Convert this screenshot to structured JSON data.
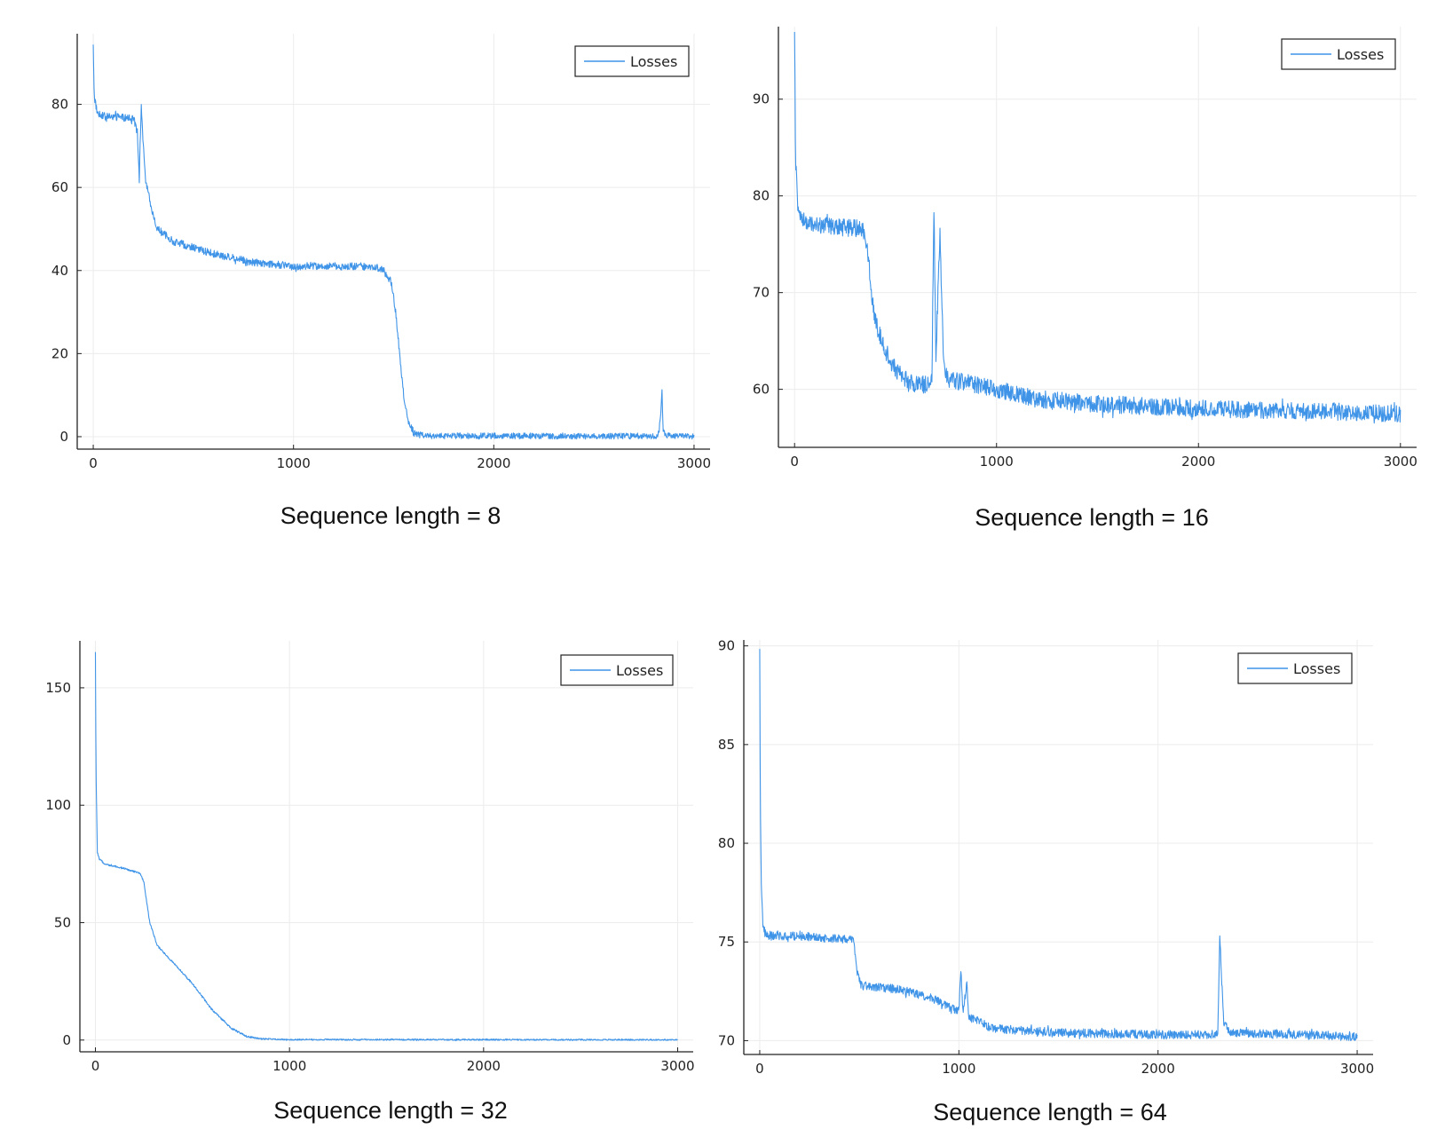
{
  "colors": {
    "series": "#3f94e8",
    "axis": "#222222",
    "grid": "#ececec"
  },
  "chart_data": [
    {
      "type": "line",
      "caption": "Sequence length = 8",
      "xlim": [
        -80,
        3080
      ],
      "ylim": [
        -3,
        97
      ],
      "xticks": [
        0,
        1000,
        2000,
        3000
      ],
      "yticks": [
        0,
        20,
        40,
        60,
        80
      ],
      "grid": true,
      "legend_position": "top-right",
      "series": [
        {
          "name": "Losses",
          "noise": 0.9,
          "points": [
            [
              0,
              94
            ],
            [
              5,
              82
            ],
            [
              20,
              78
            ],
            [
              60,
              77
            ],
            [
              120,
              77
            ],
            [
              200,
              76.5
            ],
            [
              220,
              74
            ],
            [
              230,
              62
            ],
            [
              235,
              72
            ],
            [
              240,
              80
            ],
            [
              250,
              70
            ],
            [
              260,
              62
            ],
            [
              290,
              55
            ],
            [
              320,
              50
            ],
            [
              400,
              47
            ],
            [
              600,
              44
            ],
            [
              800,
              42
            ],
            [
              1000,
              41
            ],
            [
              1200,
              41
            ],
            [
              1400,
              41
            ],
            [
              1450,
              40
            ],
            [
              1490,
              37
            ],
            [
              1510,
              30
            ],
            [
              1530,
              20
            ],
            [
              1550,
              10
            ],
            [
              1570,
              4
            ],
            [
              1600,
              1
            ],
            [
              1640,
              0.3
            ],
            [
              1700,
              0.2
            ],
            [
              2000,
              0.2
            ],
            [
              2500,
              0.1
            ],
            [
              2820,
              0.2
            ],
            [
              2830,
              3
            ],
            [
              2840,
              11
            ],
            [
              2845,
              2
            ],
            [
              2860,
              0.2
            ],
            [
              3000,
              0.1
            ]
          ]
        }
      ]
    },
    {
      "type": "line",
      "caption": "Sequence length = 16",
      "xlim": [
        -80,
        3080
      ],
      "ylim": [
        54,
        97.5
      ],
      "xticks": [
        0,
        1000,
        2000,
        3000
      ],
      "yticks": [
        60,
        70,
        80,
        90
      ],
      "grid": true,
      "legend_position": "top-right",
      "series": [
        {
          "name": "Losses",
          "noise": 0.9,
          "points": [
            [
              0,
              96.5
            ],
            [
              5,
              84
            ],
            [
              15,
              79
            ],
            [
              30,
              77.5
            ],
            [
              100,
              77
            ],
            [
              200,
              76.8
            ],
            [
              340,
              76.6
            ],
            [
              360,
              75
            ],
            [
              380,
              70
            ],
            [
              400,
              67
            ],
            [
              450,
              64
            ],
            [
              500,
              62
            ],
            [
              550,
              61
            ],
            [
              600,
              60.5
            ],
            [
              650,
              60.5
            ],
            [
              680,
              61
            ],
            [
              690,
              79
            ],
            [
              700,
              63
            ],
            [
              710,
              70
            ],
            [
              720,
              76
            ],
            [
              730,
              68
            ],
            [
              740,
              62
            ],
            [
              760,
              61
            ],
            [
              900,
              60.5
            ],
            [
              1000,
              60
            ],
            [
              1200,
              59
            ],
            [
              1500,
              58.5
            ],
            [
              2000,
              58
            ],
            [
              2500,
              57.8
            ],
            [
              3000,
              57.5
            ]
          ]
        }
      ]
    },
    {
      "type": "line",
      "caption": "Sequence length = 32",
      "xlim": [
        -80,
        3080
      ],
      "ylim": [
        -5,
        170
      ],
      "xticks": [
        0,
        1000,
        2000,
        3000
      ],
      "yticks": [
        0,
        50,
        100,
        150
      ],
      "grid": true,
      "legend_position": "top-right",
      "series": [
        {
          "name": "Losses",
          "noise": 0.4,
          "points": [
            [
              0,
              165
            ],
            [
              3,
              115
            ],
            [
              10,
              80
            ],
            [
              20,
              77
            ],
            [
              50,
              75
            ],
            [
              150,
              73
            ],
            [
              230,
              71
            ],
            [
              250,
              67
            ],
            [
              280,
              50
            ],
            [
              320,
              40
            ],
            [
              400,
              33
            ],
            [
              500,
              24
            ],
            [
              600,
              13
            ],
            [
              700,
              5
            ],
            [
              780,
              1.5
            ],
            [
              850,
              0.5
            ],
            [
              1000,
              0.2
            ],
            [
              3000,
              0.1
            ]
          ]
        }
      ]
    },
    {
      "type": "line",
      "caption": "Sequence length = 64",
      "xlim": [
        -80,
        3080
      ],
      "ylim": [
        69.3,
        90.3
      ],
      "xticks": [
        0,
        1000,
        2000,
        3000
      ],
      "yticks": [
        70,
        75,
        80,
        85,
        90
      ],
      "grid": true,
      "legend_position": "top-right",
      "series": [
        {
          "name": "Losses",
          "noise": 0.22,
          "points": [
            [
              0,
              89.7
            ],
            [
              3,
              82
            ],
            [
              8,
              78
            ],
            [
              15,
              76
            ],
            [
              30,
              75.3
            ],
            [
              200,
              75.3
            ],
            [
              470,
              75.1
            ],
            [
              490,
              73.5
            ],
            [
              510,
              72.8
            ],
            [
              700,
              72.6
            ],
            [
              850,
              72.2
            ],
            [
              950,
              71.7
            ],
            [
              1000,
              71.5
            ],
            [
              1010,
              73.5
            ],
            [
              1020,
              71.5
            ],
            [
              1040,
              72.8
            ],
            [
              1050,
              71.2
            ],
            [
              1100,
              71
            ],
            [
              1150,
              70.7
            ],
            [
              1200,
              70.6
            ],
            [
              1500,
              70.4
            ],
            [
              2000,
              70.3
            ],
            [
              2300,
              70.3
            ],
            [
              2310,
              75.5
            ],
            [
              2320,
              73
            ],
            [
              2330,
              71
            ],
            [
              2360,
              70.4
            ],
            [
              3000,
              70.2
            ]
          ]
        }
      ]
    }
  ]
}
